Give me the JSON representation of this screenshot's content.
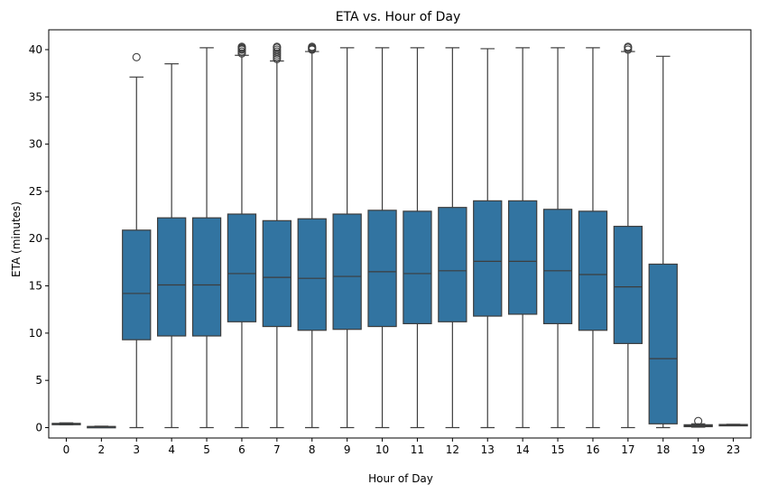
{
  "chart_data": {
    "type": "box",
    "title": "ETA vs. Hour of Day",
    "xlabel": "Hour of Day",
    "ylabel": "ETA (minutes)",
    "categories": [
      "0",
      "2",
      "3",
      "4",
      "5",
      "6",
      "7",
      "8",
      "9",
      "10",
      "11",
      "12",
      "13",
      "14",
      "15",
      "16",
      "17",
      "18",
      "19",
      "23"
    ],
    "ylim": [
      -1.1,
      42.1
    ],
    "yticks": [
      0,
      5,
      10,
      15,
      20,
      25,
      30,
      35,
      40
    ],
    "grid": false,
    "color": "#3274a1",
    "line_color": "#3d3d3d",
    "boxes": [
      {
        "whislo": 0.3,
        "q1": 0.35,
        "med": 0.4,
        "q3": 0.45,
        "whishi": 0.5,
        "fliers": []
      },
      {
        "whislo": 0.05,
        "q1": 0.07,
        "med": 0.1,
        "q3": 0.12,
        "whishi": 0.15,
        "fliers": []
      },
      {
        "whislo": 0.0,
        "q1": 9.3,
        "med": 14.2,
        "q3": 20.9,
        "whishi": 37.1,
        "fliers": [
          39.2
        ]
      },
      {
        "whislo": 0.0,
        "q1": 9.7,
        "med": 15.1,
        "q3": 22.2,
        "whishi": 38.5,
        "fliers": []
      },
      {
        "whislo": 0.0,
        "q1": 9.7,
        "med": 15.1,
        "q3": 22.2,
        "whishi": 40.2,
        "fliers": []
      },
      {
        "whislo": 0.0,
        "q1": 11.2,
        "med": 16.3,
        "q3": 22.6,
        "whishi": 39.4,
        "fliers": [
          39.6,
          39.8,
          40.0,
          40.1,
          40.2,
          40.3
        ]
      },
      {
        "whislo": 0.0,
        "q1": 10.7,
        "med": 15.9,
        "q3": 21.9,
        "whishi": 38.8,
        "fliers": [
          39.0,
          39.2,
          39.4,
          39.6,
          39.8,
          40.0,
          40.2,
          40.3
        ]
      },
      {
        "whislo": 0.0,
        "q1": 10.3,
        "med": 15.8,
        "q3": 22.1,
        "whishi": 39.8,
        "fliers": [
          40.0,
          40.1,
          40.2,
          40.3
        ]
      },
      {
        "whislo": 0.0,
        "q1": 10.4,
        "med": 16.0,
        "q3": 22.6,
        "whishi": 40.2,
        "fliers": []
      },
      {
        "whislo": 0.0,
        "q1": 10.7,
        "med": 16.5,
        "q3": 23.0,
        "whishi": 40.2,
        "fliers": []
      },
      {
        "whislo": 0.0,
        "q1": 11.0,
        "med": 16.3,
        "q3": 22.9,
        "whishi": 40.2,
        "fliers": []
      },
      {
        "whislo": 0.0,
        "q1": 11.2,
        "med": 16.6,
        "q3": 23.3,
        "whishi": 40.2,
        "fliers": []
      },
      {
        "whislo": 0.0,
        "q1": 11.8,
        "med": 17.6,
        "q3": 24.0,
        "whishi": 40.1,
        "fliers": []
      },
      {
        "whislo": 0.0,
        "q1": 12.0,
        "med": 17.6,
        "q3": 24.0,
        "whishi": 40.2,
        "fliers": []
      },
      {
        "whislo": 0.0,
        "q1": 11.0,
        "med": 16.6,
        "q3": 23.1,
        "whishi": 40.2,
        "fliers": []
      },
      {
        "whislo": 0.0,
        "q1": 10.3,
        "med": 16.2,
        "q3": 22.9,
        "whishi": 40.2,
        "fliers": []
      },
      {
        "whislo": 0.0,
        "q1": 8.9,
        "med": 14.9,
        "q3": 21.3,
        "whishi": 39.8,
        "fliers": [
          40.0,
          40.2,
          40.3
        ]
      },
      {
        "whislo": 0.0,
        "q1": 0.4,
        "med": 7.3,
        "q3": 17.3,
        "whishi": 39.3,
        "fliers": []
      },
      {
        "whislo": 0.05,
        "q1": 0.1,
        "med": 0.2,
        "q3": 0.3,
        "whishi": 0.4,
        "fliers": [
          0.7
        ]
      },
      {
        "whislo": 0.25,
        "q1": 0.27,
        "med": 0.3,
        "q3": 0.33,
        "whishi": 0.35,
        "fliers": []
      }
    ]
  }
}
